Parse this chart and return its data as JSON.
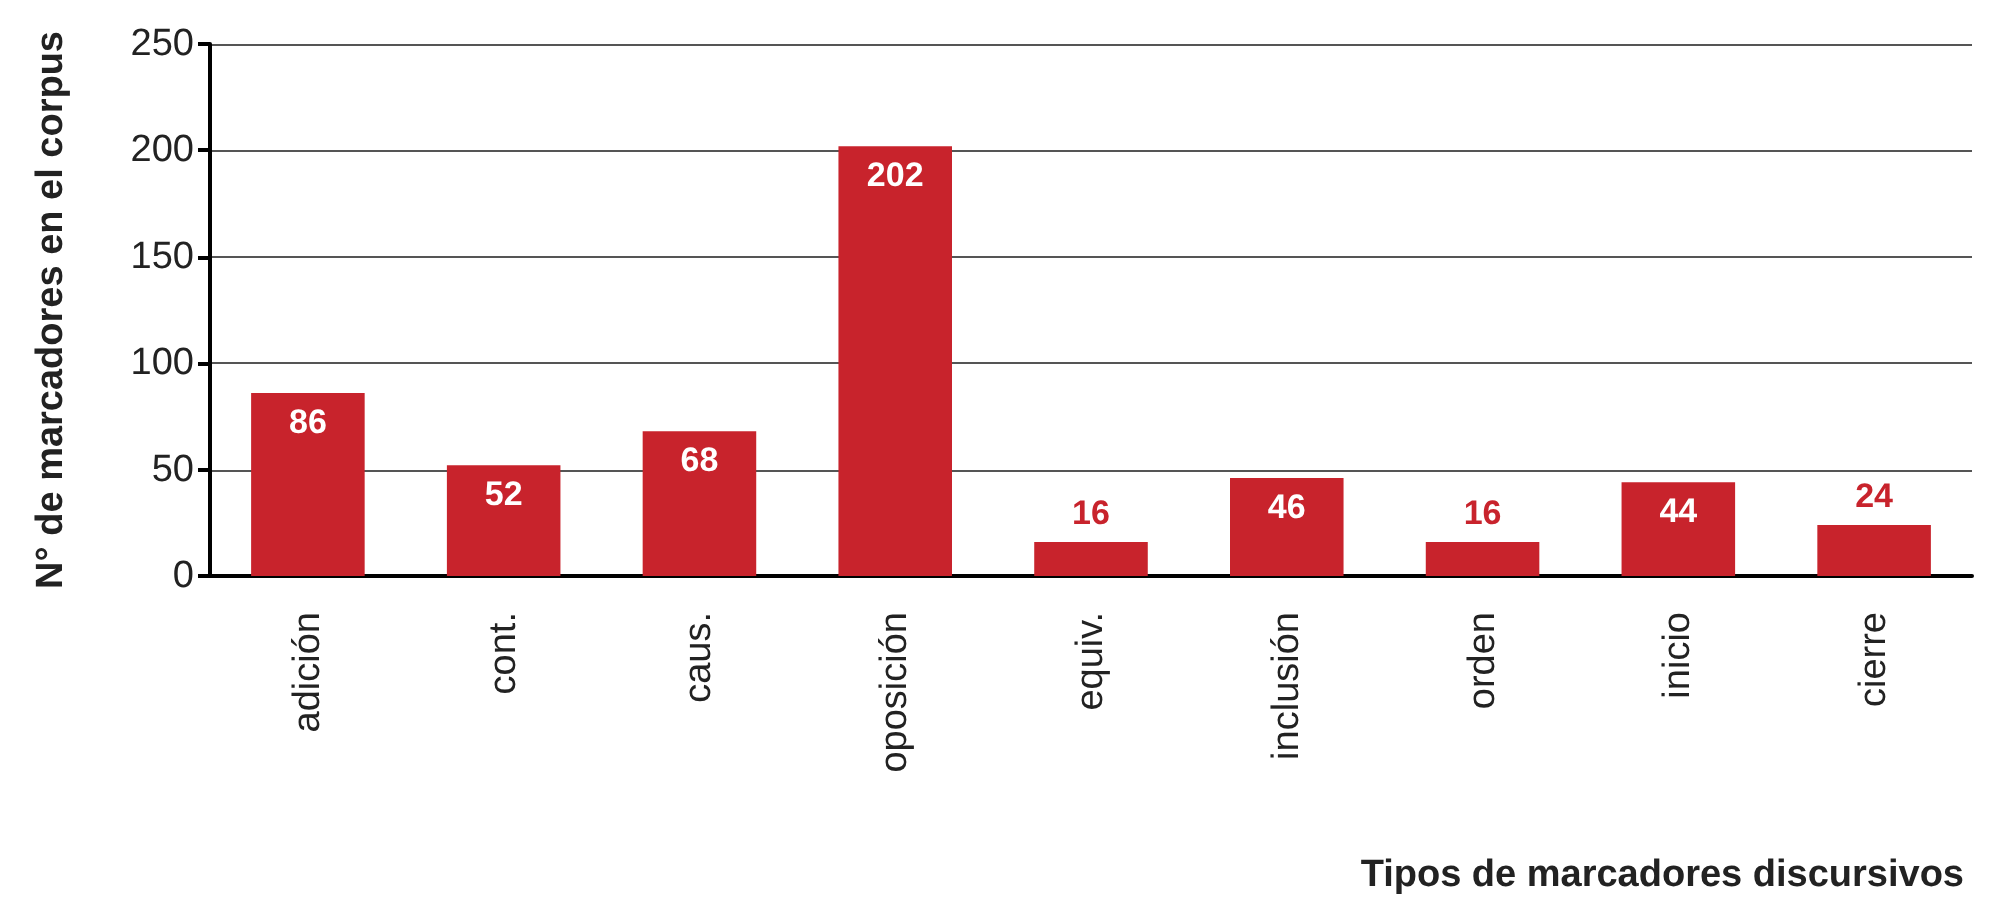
{
  "chart_data": {
    "type": "bar",
    "xlabel": "Tipos de marcadores discursivos",
    "ylabel": "N° de marcadores en el corpus",
    "categories": [
      "adición",
      "cont.",
      "caus.",
      "oposición",
      "equiv.",
      "inclusión",
      "orden",
      "inicio",
      "cierre"
    ],
    "values": [
      86,
      52,
      68,
      202,
      16,
      46,
      16,
      44,
      24
    ],
    "color": "#c8232c",
    "ylim": [
      0,
      250
    ],
    "yticks": [
      0,
      50,
      100,
      150,
      200,
      250
    ],
    "grid": "y",
    "data_labels": true
  }
}
